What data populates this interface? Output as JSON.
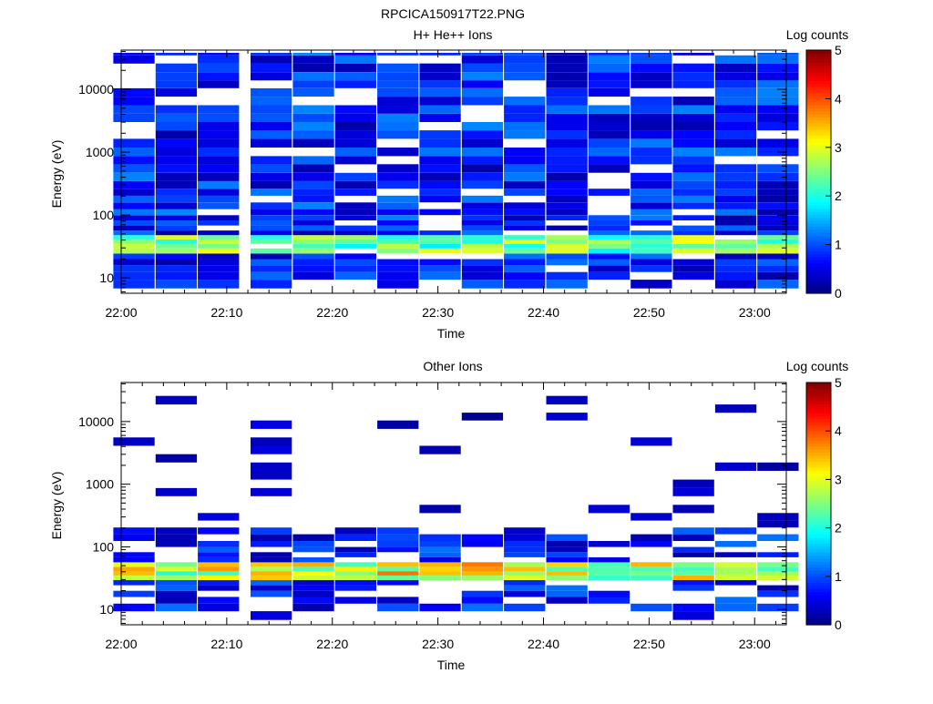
{
  "page": {
    "title": "RPCICA150917T22.PNG"
  },
  "chart_data": [
    {
      "type": "heatmap",
      "title": "H+ He++ Ions",
      "xlabel": "Time",
      "ylabel": "Energy (eV)",
      "x_ticks": [
        "22:00",
        "22:10",
        "22:20",
        "22:30",
        "22:40",
        "22:50",
        "23:00"
      ],
      "x_range": [
        "22:00",
        "23:03"
      ],
      "y_ticks": [
        "10",
        "100",
        "1000",
        "10000"
      ],
      "y_scale": "log",
      "y_range": [
        5.7,
        42000
      ],
      "colorbar": {
        "title": "Log counts",
        "ticks": [
          "0",
          "1",
          "2",
          "3",
          "4",
          "5"
        ],
        "range": [
          0,
          5
        ]
      },
      "time_columns": [
        "22:01",
        "22:05",
        "22:09",
        "22:14",
        "22:18",
        "22:22",
        "22:26",
        "22:30",
        "22:34",
        "22:38",
        "22:42",
        "22:46",
        "22:50",
        "22:54",
        "22:58",
        "23:02"
      ],
      "energy_bins_eV": [
        8,
        11,
        14,
        18,
        22,
        27,
        32,
        38,
        44,
        52,
        62,
        75,
        90,
        110,
        140,
        180,
        230,
        300,
        400,
        550,
        750,
        1000,
        1400,
        1900,
        2600,
        3500,
        4800,
        6500,
        9000,
        12000,
        16000,
        22000,
        30000,
        40000
      ],
      "notes": "Peak counts near 30-45 eV (log counts ~2.5-3); broad low level (~0.5-1) across 100-40000 eV with scattered empty bins."
    },
    {
      "type": "heatmap",
      "title": "Other Ions",
      "xlabel": "Time",
      "ylabel": "Energy (eV)",
      "x_ticks": [
        "22:00",
        "22:10",
        "22:20",
        "22:30",
        "22:40",
        "22:50",
        "23:00"
      ],
      "x_range": [
        "22:00",
        "23:03"
      ],
      "y_ticks": [
        "10",
        "100",
        "1000",
        "10000"
      ],
      "y_scale": "log",
      "y_range": [
        5.7,
        42000
      ],
      "colorbar": {
        "title": "Log counts",
        "ticks": [
          "0",
          "1",
          "2",
          "3",
          "4",
          "5"
        ],
        "range": [
          0,
          5
        ]
      },
      "notes": "Strong band 30-55 eV (log counts ~2.5-3.7); sparse low-level counts elsewhere up to ~30000 eV."
    }
  ],
  "colors": {
    "colormap": [
      "#00007f",
      "#0000ff",
      "#007fff",
      "#00ffff",
      "#7fff7f",
      "#ffff00",
      "#ff7f00",
      "#ff0000",
      "#7f0000"
    ]
  }
}
